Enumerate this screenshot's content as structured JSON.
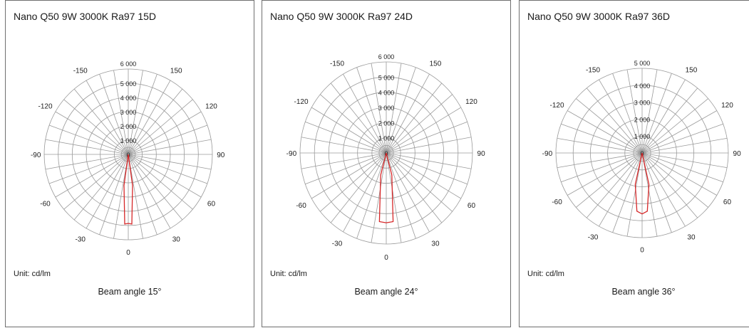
{
  "chart_data": [
    {
      "type": "polar",
      "title": "Nano Q50 9W 3000K Ra97 15D",
      "unit": "Unit: cd/lm",
      "beam_label": "Beam angle 15°",
      "angle_ticks": [
        "-150",
        "150",
        "-120",
        "120",
        "-90",
        "90",
        "-60",
        "60",
        "-30",
        "30",
        "0"
      ],
      "radial_ticks": [
        "6 000",
        "5 000",
        "4 000",
        "3 000",
        "2 000",
        "1 000",
        "0"
      ],
      "rmax": 6000,
      "grid": true,
      "series": [
        {
          "color": "#d62728",
          "angles": [
            -13,
            -8,
            -3,
            0,
            3,
            8,
            13,
            -13
          ],
          "values": [
            0,
            2200,
            4900,
            4850,
            4900,
            2200,
            0,
            0
          ]
        }
      ]
    },
    {
      "type": "polar",
      "title": "Nano Q50 9W 3000K Ra97 24D",
      "unit": "Unit: cd/lm",
      "beam_label": "Beam angle 24°",
      "angle_ticks": [
        "-150",
        "150",
        "-120",
        "120",
        "-90",
        "90",
        "-60",
        "60",
        "-30",
        "30",
        "0"
      ],
      "radial_ticks": [
        "6 000",
        "5 000",
        "4 000",
        "3 000",
        "2 000",
        "1 000",
        "0"
      ],
      "rmax": 6000,
      "grid": true,
      "series": [
        {
          "color": "#d62728",
          "angles": [
            -20,
            -15,
            -6,
            0,
            6,
            15,
            20,
            -20
          ],
          "values": [
            0,
            1500,
            4550,
            4600,
            4550,
            1500,
            0,
            0
          ]
        }
      ]
    },
    {
      "type": "polar",
      "title": "Nano Q50 9W 3000K Ra97 36D",
      "unit": "Unit: cd/lm",
      "beam_label": "Beam angle 36°",
      "angle_ticks": [
        "-150",
        "150",
        "-120",
        "120",
        "-90",
        "90",
        "-60",
        "60",
        "-30",
        "30",
        "0"
      ],
      "radial_ticks": [
        "5 000",
        "4 000",
        "3 000",
        "2 000",
        "1 000",
        "0"
      ],
      "rmax": 5000,
      "grid": true,
      "series": [
        {
          "color": "#d62728",
          "angles": [
            -18,
            -12,
            -5,
            0,
            5,
            12,
            18,
            -18
          ],
          "values": [
            0,
            1900,
            3450,
            3600,
            3450,
            1900,
            0,
            0
          ]
        }
      ]
    }
  ]
}
